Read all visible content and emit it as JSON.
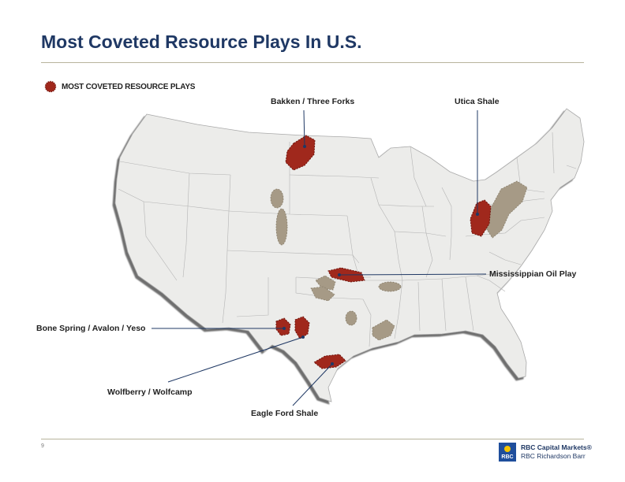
{
  "title": "Most Coveted Resource Plays In U.S.",
  "legend": {
    "label": "MOST COVETED RESOURCE PLAYS",
    "color": "#a0281c"
  },
  "plays": {
    "bakken": "Bakken / Three Forks",
    "utica": "Utica Shale",
    "mississippian": "Mississippian Oil Play",
    "bone_spring": "Bone Spring / Avalon / Yeso",
    "wolfberry": "Wolfberry / Wolfcamp",
    "eagle_ford": "Eagle Ford Shale"
  },
  "colors": {
    "coveted": "#a0281c",
    "other_play": "#a69a86",
    "land": "#ececea",
    "title": "#1f3864"
  },
  "page_number": "9",
  "logo": {
    "emblem": "RBC",
    "line1": "RBC Capital Markets®",
    "line2": "RBC Richardson Barr"
  }
}
